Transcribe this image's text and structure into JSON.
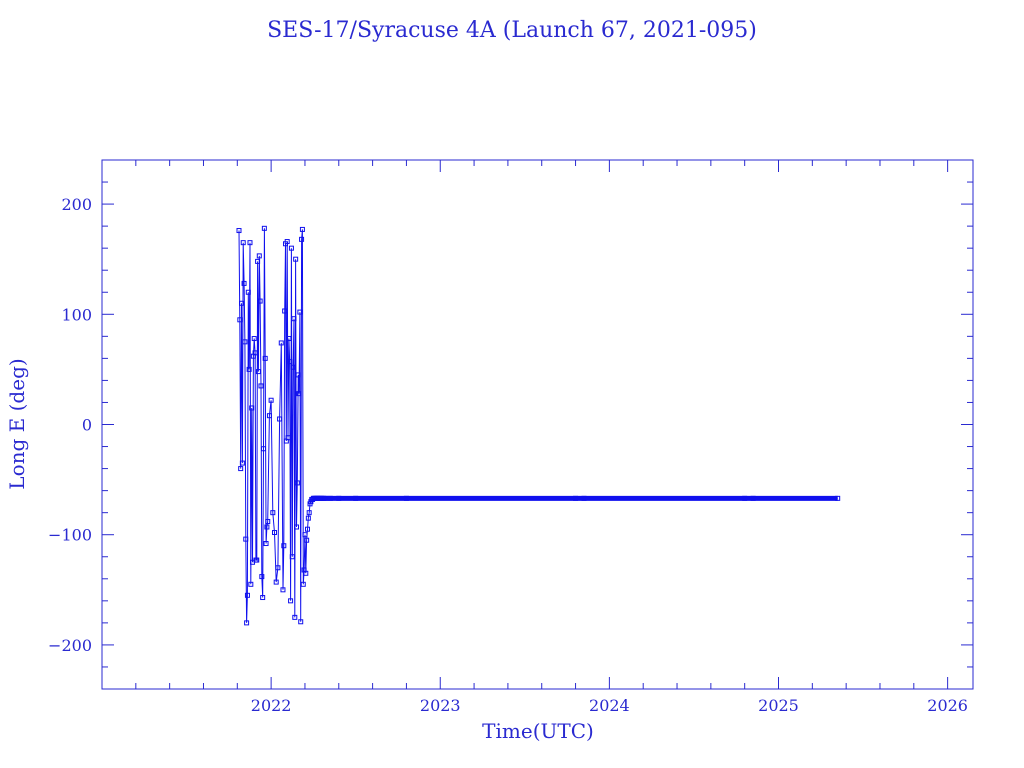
{
  "chart_data": {
    "type": "line",
    "title": "SES-17/Syracuse 4A (Launch 67, 2021-095)",
    "xlabel": "Time(UTC)",
    "ylabel": "Long E (deg)",
    "xlim": [
      2021.0,
      2026.15
    ],
    "ylim": [
      -240,
      240
    ],
    "x_ticks": [
      "2022",
      "2023",
      "2024",
      "2025",
      "2026"
    ],
    "y_ticks": [
      "200",
      "100",
      "0",
      "−100",
      "−200"
    ],
    "x_tick_values": [
      2022,
      2023,
      2024,
      2025,
      2026
    ],
    "y_tick_values": [
      200,
      100,
      0,
      -100,
      -200
    ],
    "grid": false,
    "color": "#1010ee",
    "series": [
      {
        "x": [
          2021.81,
          2021.815,
          2021.82,
          2021.825,
          2021.83,
          2021.835,
          2021.84,
          2021.845,
          2021.85,
          2021.855,
          2021.86,
          2021.865,
          2021.87,
          2021.875,
          2021.88,
          2021.885,
          2021.89,
          2021.895,
          2021.9,
          2021.905,
          2021.91,
          2021.915,
          2021.92,
          2021.925,
          2021.93,
          2021.935,
          2021.94,
          2021.945,
          2021.95,
          2021.955,
          2021.96,
          2021.965,
          2021.97,
          2021.975,
          2021.98,
          2021.99,
          2022.0,
          2022.01,
          2022.02,
          2022.03,
          2022.04,
          2022.05,
          2022.06,
          2022.07,
          2022.075,
          2022.08,
          2022.085,
          2022.09,
          2022.095,
          2022.1,
          2022.105,
          2022.11,
          2022.115,
          2022.12,
          2022.125,
          2022.13,
          2022.135,
          2022.14,
          2022.145,
          2022.15,
          2022.155,
          2022.16,
          2022.165,
          2022.17,
          2022.175,
          2022.18,
          2022.185,
          2022.19,
          2022.195,
          2022.2,
          2022.205,
          2022.21,
          2022.215,
          2022.22,
          2022.225,
          2022.23,
          2022.235,
          2022.24,
          2022.245,
          2022.25,
          2022.255,
          2022.26,
          2022.265,
          2022.27,
          2022.275,
          2022.28,
          2022.285,
          2022.29,
          2022.295,
          2022.3,
          2022.31,
          2022.32,
          2022.35,
          2022.4,
          2022.5,
          2022.8,
          2023.8,
          2023.85,
          2024.8,
          2024.85,
          2025.35
        ],
        "y": [
          176,
          95,
          -40,
          110,
          -35,
          165,
          128,
          75,
          -104,
          -180,
          -155,
          120,
          50,
          165,
          -145,
          15,
          -125,
          62,
          78,
          65,
          -123,
          -123,
          148,
          48,
          153,
          112,
          35,
          -138,
          -157,
          -22,
          178,
          60,
          -108,
          -93,
          -88,
          8,
          22,
          -80,
          -98,
          -143,
          -130,
          5,
          74,
          -150,
          -110,
          103,
          164,
          -15,
          166,
          -12,
          78,
          57,
          -160,
          160,
          -120,
          52,
          96,
          -175,
          150,
          -93,
          -53,
          45,
          28,
          102,
          -179,
          168,
          177,
          -145,
          -132,
          -100,
          -135,
          -105,
          -95,
          -85,
          -80,
          -72,
          -70,
          -68,
          -68,
          -67,
          -67,
          -67,
          -67,
          -67,
          -67,
          -67,
          -67,
          -67,
          -67,
          -67,
          -67,
          -67,
          -67,
          -67,
          -67,
          -67,
          -67,
          -67,
          -67,
          -67,
          -67
        ]
      }
    ]
  }
}
